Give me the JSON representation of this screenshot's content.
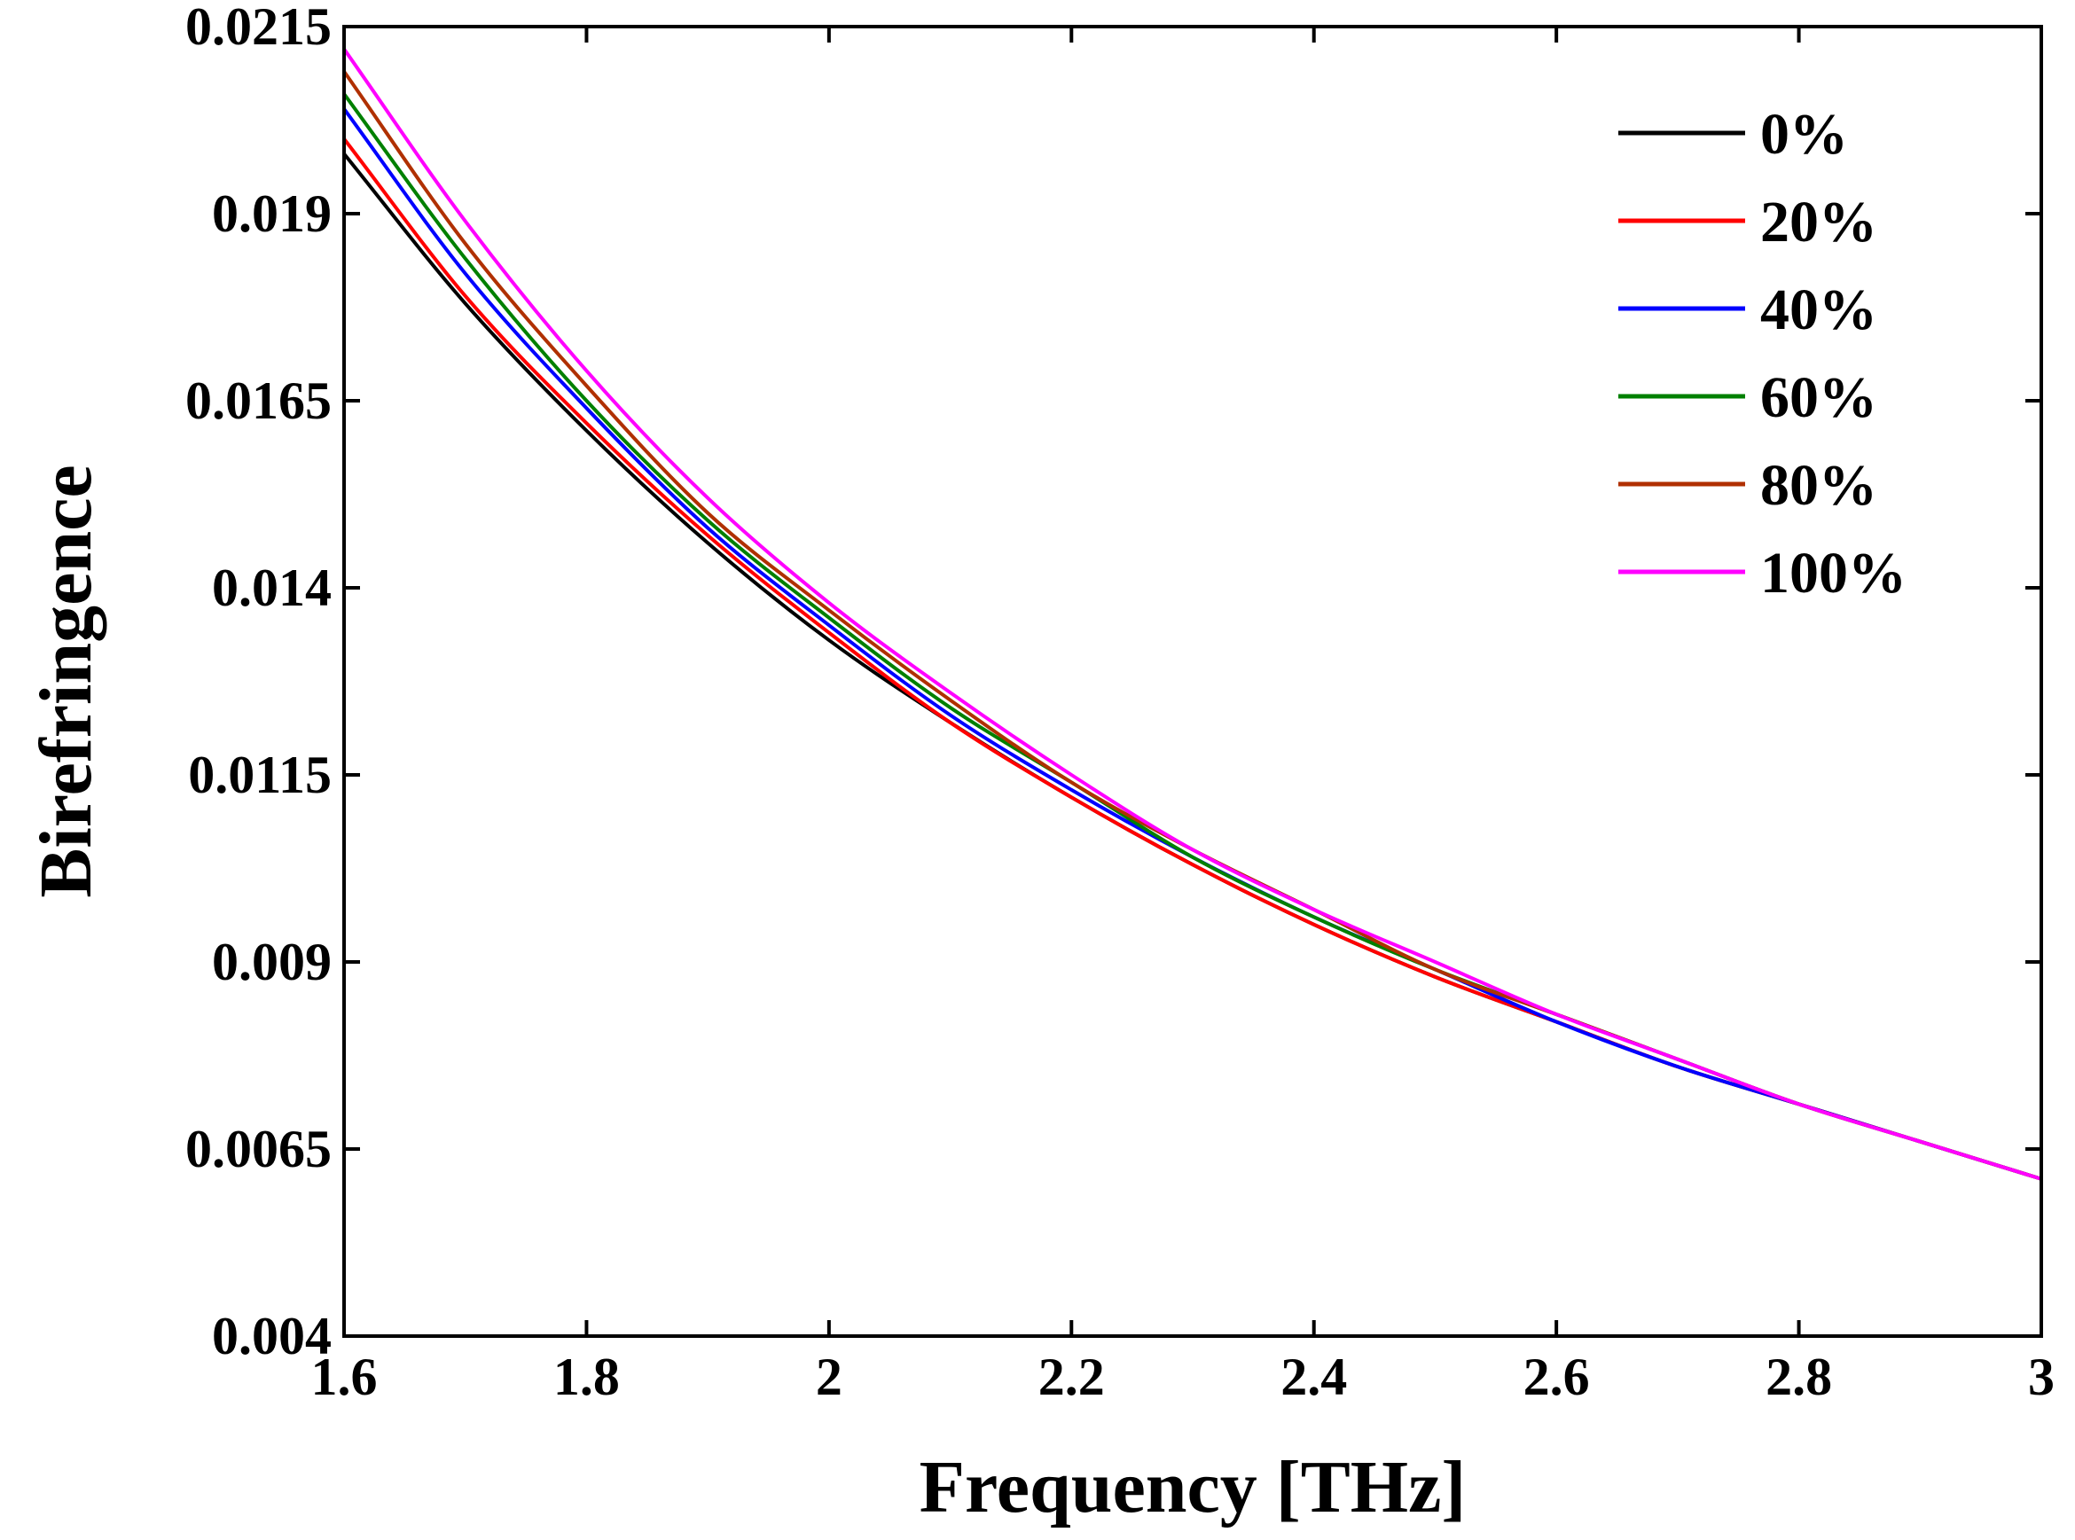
{
  "chart_data": {
    "type": "line",
    "title": "",
    "xlabel": "Frequency [THz]",
    "ylabel": "Birefringence",
    "xlim": [
      1.6,
      3.0
    ],
    "ylim": [
      0.004,
      0.0215
    ],
    "xticks": [
      1.6,
      1.8,
      2.0,
      2.2,
      2.4,
      2.6,
      2.8,
      3.0
    ],
    "xtick_labels": [
      "1.6",
      "1.8",
      "2",
      "2.2",
      "2.4",
      "2.6",
      "2.8",
      "3"
    ],
    "yticks": [
      0.004,
      0.0065,
      0.009,
      0.0115,
      0.014,
      0.0165,
      0.019,
      0.0215
    ],
    "ytick_labels": [
      "0.004",
      "0.0065",
      "0.009",
      "0.0115",
      "0.014",
      "0.0165",
      "0.019",
      "0.0215"
    ],
    "grid": false,
    "legend_position": "top-right",
    "x": [
      1.6,
      1.7,
      1.8,
      1.9,
      2.0,
      2.1,
      2.2,
      2.3,
      2.4,
      2.5,
      2.6,
      2.7,
      2.8,
      2.9,
      3.0
    ],
    "series": [
      {
        "name": "0%",
        "color": "#000000",
        "values": [
          0.0198,
          0.0178,
          0.0161,
          0.0146,
          0.0133,
          0.0122,
          0.0112,
          0.0103,
          0.0095,
          0.0088,
          0.0082,
          0.0076,
          0.0071,
          0.0066,
          0.0061
        ]
      },
      {
        "name": "20%",
        "color": "#ff0000",
        "values": [
          0.02,
          0.0179,
          0.0162,
          0.0147,
          0.0134,
          0.0122,
          0.0112,
          0.0103,
          0.0095,
          0.0088,
          0.0082,
          0.0076,
          0.0071,
          0.0066,
          0.0061
        ]
      },
      {
        "name": "40%",
        "color": "#0000ff",
        "values": [
          0.0204,
          0.0182,
          0.0164,
          0.0148,
          0.0135,
          0.0123,
          0.0113,
          0.0104,
          0.0096,
          0.0089,
          0.0082,
          0.0076,
          0.0071,
          0.0066,
          0.0061
        ]
      },
      {
        "name": "60%",
        "color": "#008000",
        "values": [
          0.0206,
          0.0184,
          0.0165,
          0.0149,
          0.0136,
          0.0124,
          0.0114,
          0.0104,
          0.0096,
          0.0089,
          0.0083,
          0.0077,
          0.0071,
          0.0066,
          0.0061
        ]
      },
      {
        "name": "80%",
        "color": "#b03000",
        "values": [
          0.0209,
          0.0186,
          0.0167,
          0.015,
          0.0137,
          0.0125,
          0.0114,
          0.0105,
          0.0097,
          0.0089,
          0.0083,
          0.0077,
          0.0071,
          0.0066,
          0.0061
        ]
      },
      {
        "name": "100%",
        "color": "#ff00ff",
        "values": [
          0.0212,
          0.0189,
          0.0169,
          0.0152,
          0.0138,
          0.0126,
          0.0115,
          0.0105,
          0.0097,
          0.009,
          0.0083,
          0.0077,
          0.0071,
          0.0066,
          0.0061
        ]
      }
    ]
  }
}
